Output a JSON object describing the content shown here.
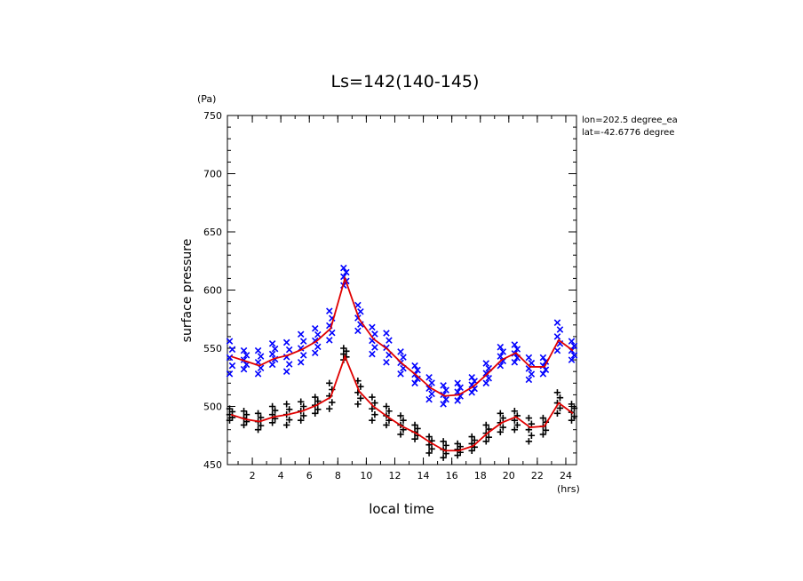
{
  "chart_data": {
    "type": "scatter",
    "title": "Ls=142(140-145)",
    "xlabel": "local time",
    "ylabel": "surface pressure",
    "x_unit": "(hrs)",
    "y_unit": "(Pa)",
    "xlim": [
      0.25,
      24.75
    ],
    "ylim": [
      450,
      750
    ],
    "xticks": [
      2,
      4,
      6,
      8,
      10,
      12,
      14,
      16,
      18,
      20,
      22,
      24
    ],
    "yticks": [
      450,
      500,
      550,
      600,
      650,
      700,
      750
    ],
    "annotations": [
      "lon=202.5 degree_ea",
      "lat=-42.6776 degree"
    ],
    "grid": false,
    "series": [
      {
        "marker": "x",
        "color": "#0000ff",
        "x": [
          0.5,
          1.5,
          2.5,
          3.5,
          4.5,
          5.5,
          6.5,
          7.5,
          8.5,
          9.5,
          10.5,
          11.5,
          12.5,
          13.5,
          14.5,
          15.5,
          16.5,
          17.5,
          18.5,
          19.5,
          20.5,
          21.5,
          22.5,
          23.5,
          24.5
        ],
        "y_min": [
          528,
          532,
          528,
          536,
          530,
          538,
          546,
          557,
          604,
          565,
          545,
          538,
          528,
          520,
          506,
          502,
          505,
          512,
          520,
          535,
          538,
          523,
          528,
          548,
          540
        ],
        "y_max": [
          556,
          548,
          548,
          554,
          555,
          562,
          567,
          582,
          619,
          587,
          568,
          563,
          547,
          535,
          525,
          518,
          520,
          525,
          537,
          551,
          553,
          542,
          542,
          572,
          556
        ]
      },
      {
        "marker": "+",
        "color": "#000000",
        "x": [
          0.5,
          1.5,
          2.5,
          3.5,
          4.5,
          5.5,
          6.5,
          7.5,
          8.5,
          9.5,
          10.5,
          11.5,
          12.5,
          13.5,
          14.5,
          15.5,
          16.5,
          17.5,
          18.5,
          19.5,
          20.5,
          21.5,
          22.5,
          23.5,
          24.5
        ],
        "y_min": [
          488,
          484,
          480,
          486,
          484,
          488,
          494,
          498,
          540,
          502,
          488,
          484,
          476,
          472,
          460,
          456,
          458,
          462,
          470,
          478,
          480,
          470,
          476,
          494,
          488
        ],
        "y_max": [
          498,
          496,
          494,
          500,
          502,
          504,
          508,
          520,
          550,
          522,
          508,
          500,
          492,
          484,
          474,
          470,
          468,
          474,
          484,
          494,
          496,
          490,
          490,
          512,
          502
        ]
      }
    ],
    "lines": [
      {
        "color": "#e00000",
        "x": [
          0.5,
          1.5,
          2.5,
          3.5,
          4.5,
          5.5,
          6.5,
          7.5,
          8.5,
          9.5,
          10.5,
          11.5,
          12.5,
          13.5,
          14.5,
          15.5,
          16.5,
          17.5,
          18.5,
          19.5,
          20.5,
          21.5,
          22.5,
          23.5,
          24.5
        ],
        "y": [
          543,
          539,
          535,
          541,
          544,
          549,
          556,
          567,
          610,
          575,
          558,
          549,
          537,
          527,
          516,
          509,
          510,
          517,
          528,
          540,
          546,
          534,
          534,
          557,
          548
        ]
      },
      {
        "color": "#e00000",
        "x": [
          0.5,
          1.5,
          2.5,
          3.5,
          4.5,
          5.5,
          6.5,
          7.5,
          8.5,
          9.5,
          10.5,
          11.5,
          12.5,
          13.5,
          14.5,
          15.5,
          16.5,
          17.5,
          18.5,
          19.5,
          20.5,
          21.5,
          22.5,
          23.5,
          24.5
        ],
        "y": [
          493,
          489,
          487,
          491,
          493,
          496,
          501,
          508,
          543,
          513,
          500,
          491,
          483,
          477,
          469,
          462,
          462,
          466,
          477,
          486,
          491,
          482,
          483,
          503,
          494
        ]
      }
    ]
  }
}
